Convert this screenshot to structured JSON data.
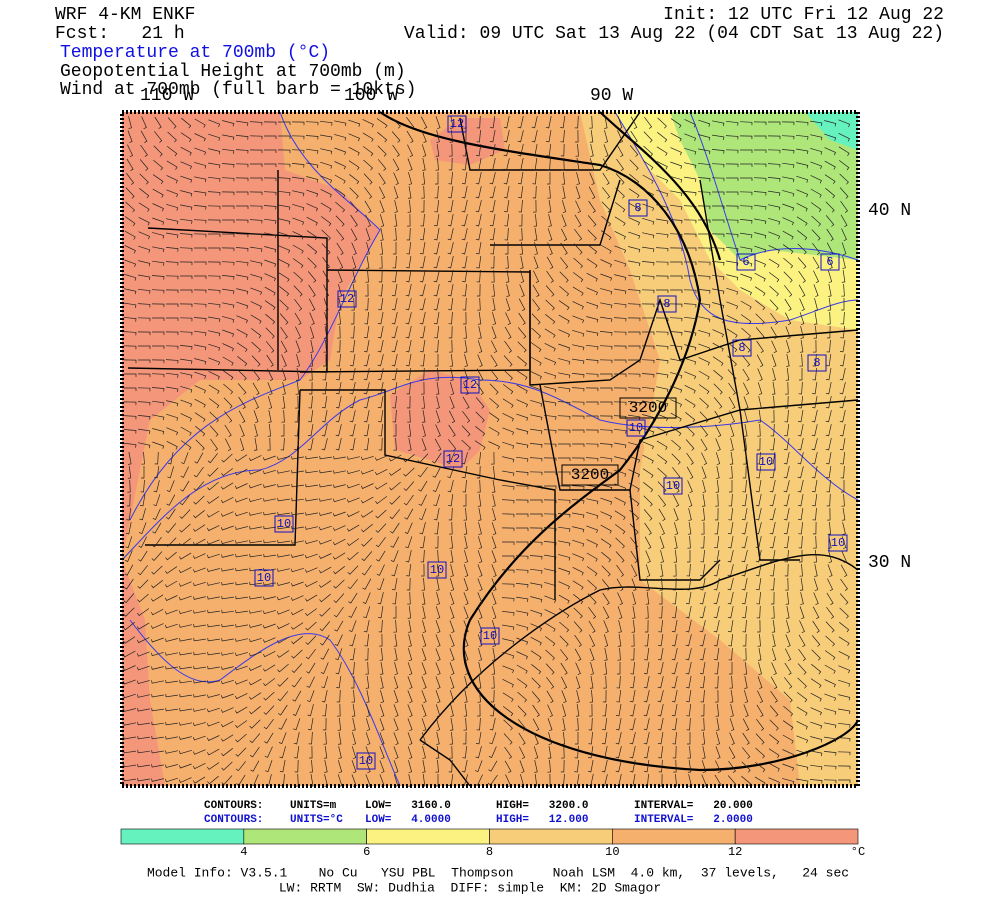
{
  "header": {
    "model": "WRF 4-KM ENKF",
    "forecast": "Fcst:   21 h",
    "init": "Init: 12 UTC Fri 12 Aug 22",
    "valid": "Valid: 09 UTC Sat 13 Aug 22 (04 CDT Sat 13 Aug 22)",
    "fields": [
      "Temperature at 700mb (°C)",
      "Geopotential Height at 700mb (m)",
      "Wind at 700mb (full barb = 10kts)"
    ]
  },
  "map": {
    "longitude_labels": [
      "110 W",
      "100 W",
      "90 W"
    ],
    "latitude_labels": [
      "40 N",
      "30 N"
    ],
    "temperature_labels": [
      "12",
      "12",
      "12",
      "12",
      "10",
      "10",
      "10",
      "10",
      "10",
      "10",
      "10",
      "10",
      "10",
      "8",
      "8",
      "8",
      "8",
      "6",
      "6"
    ],
    "height_labels": [
      "3200",
      "3200"
    ]
  },
  "contour_info": [
    [
      "CONTOURS:",
      "UNITS=m",
      "LOW=   3160.0",
      "HIGH=   3200.0",
      "INTERVAL=   20.000"
    ],
    [
      "CONTOURS:",
      "UNITS=°C",
      "LOW=   4.0000",
      "HIGH=   12.000",
      "INTERVAL=   2.0000"
    ]
  ],
  "colorbar": {
    "ticks": [
      4,
      6,
      8,
      10,
      12
    ],
    "unit": "°C",
    "colors": [
      "#66f2bf",
      "#aee67a",
      "#fbf282",
      "#f8cd7a",
      "#f6b06e",
      "#f4967a"
    ]
  },
  "footer": [
    "Model Info: V3.5.1    No Cu   YSU PBL  Thompson     Noah LSM  4.0 km,  37 levels,   24 sec",
    "LW: RRTM  SW: Dudhia  DIFF: simple  KM: 2D Smagor"
  ]
}
